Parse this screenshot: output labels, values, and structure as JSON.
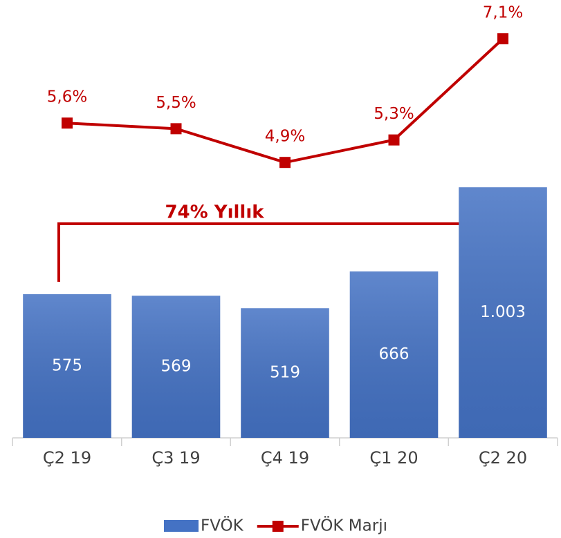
{
  "chart_data": {
    "type": "bar-line",
    "categories": [
      "Ç2 19",
      "Ç3 19",
      "Ç4 19",
      "Ç1 20",
      "Ç2 20"
    ],
    "series": [
      {
        "name": "FVÖK",
        "type": "bar",
        "color": "#4472c4",
        "values": [
          575,
          569,
          519,
          666,
          1003
        ],
        "value_labels": [
          "575",
          "569",
          "519",
          "666",
          "1.003"
        ]
      },
      {
        "name": "FVÖK Marjı",
        "type": "line",
        "axis": "y2",
        "color": "#c00000",
        "values": [
          5.6,
          5.5,
          4.9,
          5.3,
          7.1
        ],
        "value_labels": [
          "5,6%",
          "5,5%",
          "4,9%",
          "5,3%",
          "7,1%"
        ]
      }
    ],
    "annotations": [
      "74% Yıllık"
    ],
    "ylim": [
      0,
      1620
    ],
    "y2lim": [
      0,
      7.2
    ],
    "legend": "bottom"
  }
}
